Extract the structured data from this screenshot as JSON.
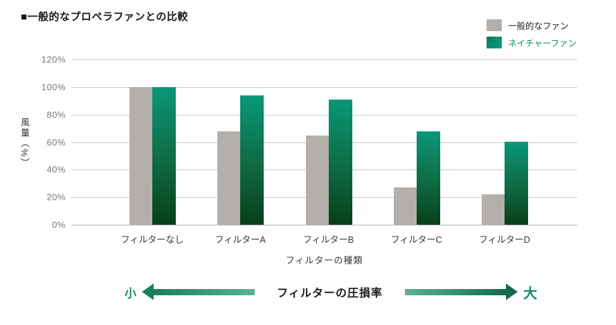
{
  "title": "■一般的なプロペラファンとの比較",
  "legend": {
    "items": [
      {
        "label": "一般的なファン",
        "swatch": "gray-swatch"
      },
      {
        "label": "ネイチャーファン",
        "swatch": "green-gradient-swatch"
      }
    ]
  },
  "chart_data": {
    "type": "bar",
    "title": "一般的なプロペラファンとの比較",
    "categories": [
      "フィルターなし",
      "フィルターA",
      "フィルターB",
      "フィルターC",
      "フィルターD"
    ],
    "series": [
      {
        "name": "一般的なファン",
        "values": [
          100,
          68,
          65,
          27,
          22
        ],
        "color": "#b4afab"
      },
      {
        "name": "ネイチャーファン",
        "values": [
          100,
          94,
          91,
          68,
          60
        ],
        "color_top": "#0a9778",
        "color_bottom": "#083f1c"
      }
    ],
    "ylabel": "風量（%）",
    "xlabel": "フィルターの種類",
    "yticks": [
      "120%",
      "100%",
      "80%",
      "60%",
      "40%",
      "20%",
      "0%"
    ],
    "ylim": [
      0,
      120
    ],
    "grid": true,
    "legend_position": "top-right"
  },
  "footer": {
    "left_label": "小",
    "center_label": "フィルターの圧損率",
    "right_label": "大"
  },
  "colors": {
    "bar_gray": "#b4afab",
    "bar_green_top": "#0a9778",
    "bar_green_bottom": "#083f1c",
    "legend_green_text": "#0a8f6c",
    "gridline": "#cbcbcb",
    "tick_label": "#7b7876",
    "arrow_dark": "#1b7d5e",
    "arrow_light": "#5bb295",
    "accent_text_green": "#0e8c67"
  }
}
